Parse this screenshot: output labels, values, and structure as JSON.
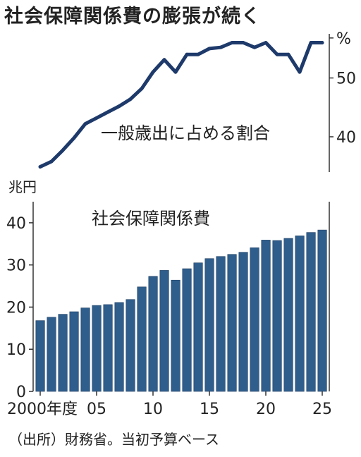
{
  "title": "社会保障関係費の膨張が続く",
  "source_note": "（出所）財務省。当初予算ベース",
  "colors": {
    "line": "#1e3a6b",
    "bar": "#2f5e8c",
    "bar_edge": "#1e3f63",
    "axis": "#333333"
  },
  "chart_data": [
    {
      "type": "line",
      "label": "一般歳出に占める割合",
      "unit": "%",
      "x": [
        2000,
        2001,
        2002,
        2003,
        2004,
        2005,
        2006,
        2007,
        2008,
        2009,
        2010,
        2011,
        2012,
        2013,
        2014,
        2015,
        2016,
        2017,
        2018,
        2019,
        2020,
        2021,
        2022,
        2023,
        2024,
        2025
      ],
      "values": [
        34.9,
        35.8,
        37.7,
        39.8,
        42.2,
        43.2,
        44.2,
        45.2,
        46.4,
        48.2,
        51.0,
        53.1,
        51.0,
        54.0,
        54.0,
        55.0,
        55.2,
        56.0,
        56.0,
        55.2,
        56.0,
        54.0,
        54.0,
        51.0,
        56.0,
        56.0
      ],
      "ticks": [
        {
          "value": 40,
          "label": "40"
        },
        {
          "value": 50,
          "label": "50"
        },
        {
          "value": 56.8,
          "label": "%"
        }
      ],
      "ylim": [
        34,
        57.5
      ]
    },
    {
      "type": "bar",
      "label": "社会保障関係費",
      "ylabel": "兆円",
      "x": [
        2000,
        2001,
        2002,
        2003,
        2004,
        2005,
        2006,
        2007,
        2008,
        2009,
        2010,
        2011,
        2012,
        2013,
        2014,
        2015,
        2016,
        2017,
        2018,
        2019,
        2020,
        2021,
        2022,
        2023,
        2024,
        2025
      ],
      "values": [
        16.8,
        17.6,
        18.3,
        18.9,
        19.8,
        20.4,
        20.6,
        21.1,
        21.8,
        24.8,
        27.3,
        28.7,
        26.4,
        29.1,
        30.5,
        31.5,
        32.0,
        32.5,
        33.0,
        34.1,
        35.9,
        35.8,
        36.3,
        36.9,
        37.7,
        38.3
      ],
      "ylim": [
        0,
        45
      ],
      "yticks": [
        {
          "value": 0,
          "label": "0"
        },
        {
          "value": 10,
          "label": "10"
        },
        {
          "value": 20,
          "label": "20"
        },
        {
          "value": 30,
          "label": "30"
        },
        {
          "value": 40,
          "label": "40"
        }
      ],
      "xticks": [
        {
          "value": 2000,
          "label": "2000年度"
        },
        {
          "value": 2005,
          "label": "05"
        },
        {
          "value": 2010,
          "label": "10"
        },
        {
          "value": 2015,
          "label": "15"
        },
        {
          "value": 2020,
          "label": "20"
        },
        {
          "value": 2025,
          "label": "25"
        }
      ]
    }
  ]
}
